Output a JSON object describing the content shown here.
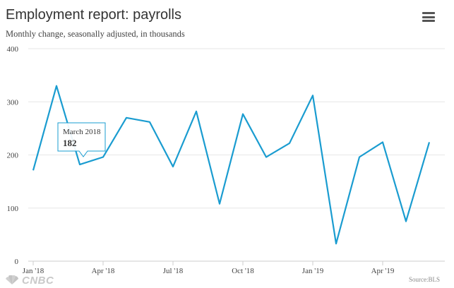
{
  "header": {
    "title": "Employment report: payrolls",
    "subtitle": "Monthly change, seasonally adjusted, in thousands"
  },
  "menu": {
    "icon": "hamburger-menu-icon"
  },
  "footer": {
    "logo_text": "CNBC",
    "source": "Source:BLS"
  },
  "tooltip": {
    "label": "March 2018",
    "value": "182"
  },
  "colors": {
    "line": "#1a9cd0",
    "grid": "#e6e6e6",
    "axis": "#cccccc",
    "tooltip_border": "#1a9cd0"
  },
  "chart_data": {
    "type": "line",
    "title": "Employment report: payrolls",
    "subtitle": "Monthly change, seasonally adjusted, in thousands",
    "xlabel": "",
    "ylabel": "",
    "ylim": [
      0,
      400
    ],
    "y_ticks": [
      "0",
      "100",
      "200",
      "300",
      "400"
    ],
    "x_ticks": [
      {
        "label": "Jan '18",
        "month": "2018-01"
      },
      {
        "label": "Apr '18",
        "month": "2018-04"
      },
      {
        "label": "Jul '18",
        "month": "2018-07"
      },
      {
        "label": "Oct '18",
        "month": "2018-10"
      },
      {
        "label": "Jan '19",
        "month": "2019-01"
      },
      {
        "label": "Apr '19",
        "month": "2019-04"
      }
    ],
    "grid": true,
    "legend": "none",
    "series": [
      {
        "x": [
          "2018-01",
          "2018-02",
          "2018-03",
          "2018-04",
          "2018-05",
          "2018-06",
          "2018-07",
          "2018-08",
          "2018-09",
          "2018-10",
          "2018-11",
          "2018-12",
          "2019-01",
          "2019-02",
          "2019-03",
          "2019-04",
          "2019-05",
          "2019-06"
        ],
        "values": [
          171,
          330,
          182,
          196,
          270,
          262,
          178,
          282,
          108,
          277,
          196,
          222,
          312,
          33,
          196,
          224,
          75,
          224
        ]
      }
    ]
  }
}
